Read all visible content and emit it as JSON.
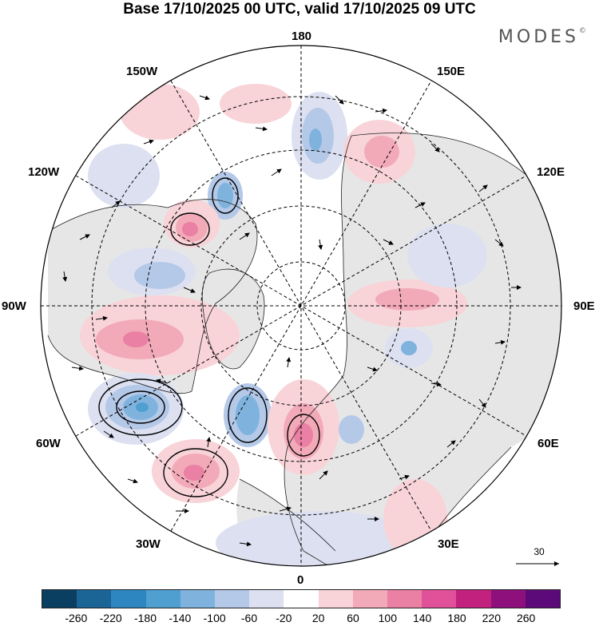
{
  "title": "Base 17/10/2025 00 UTC, valid 17/10/2025 09 UTC",
  "brand": "MODES",
  "brand_mark": "©",
  "longitude_labels": {
    "top": "180",
    "bottom": "0",
    "left": "90W",
    "right": "90E",
    "upper_left_outer": "150W",
    "upper_left_inner": "120W",
    "upper_right_outer": "150E",
    "upper_right_inner": "120E",
    "lower_left_inner": "60W",
    "lower_left_outer": "30W",
    "lower_right_inner": "60E",
    "lower_right_outer": "30E"
  },
  "vector_scale": "30",
  "colorbar": {
    "colors": [
      "#0b3f61",
      "#1a6496",
      "#2e86c1",
      "#4f9fd1",
      "#7fb3dd",
      "#b4c8e8",
      "#dde0f1",
      "#ffffff",
      "#f8d3d8",
      "#f2aab8",
      "#ea80a3",
      "#e0519a",
      "#c2217e",
      "#8e107d",
      "#5c0a7a"
    ],
    "ticks": [
      "-260",
      "-220",
      "-180",
      "-140",
      "-100",
      "-60",
      "-20",
      "20",
      "60",
      "100",
      "140",
      "180",
      "220",
      "260"
    ]
  },
  "colors": {
    "land": "#e6e6e6",
    "ocean": "#ffffff",
    "grid": "#000000"
  }
}
